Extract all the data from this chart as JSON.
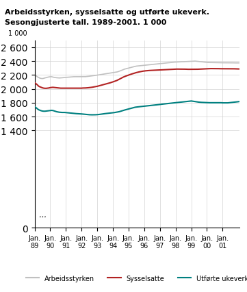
{
  "title": "Arbeidsstyrken, sysselsatte og utføre ukeverk.\nSesongjusterte tall. 1989-2001. 1 000",
  "title_line1": "Arbeidsstyrken, sysselsatte og utførte ukeverk.",
  "title_line2": "Sesongjusterte tall. 1989-2001. 1 000",
  "ylabel": "1 000",
  "ylim": [
    0,
    2700
  ],
  "yticks": [
    0,
    1400,
    1600,
    1800,
    2000,
    2200,
    2400,
    2600
  ],
  "xtick_labels": [
    "Jan.\n89",
    "Jan.\n90",
    "Jan.\n91",
    "Jan.\n92",
    "Jan.\n93",
    "Jan.\n94",
    "Jan.\n95",
    "Jan.\n96",
    "Jan.\n97",
    "Jan.\n98",
    "Jan.\n99",
    "Jan.\n00",
    "Jan.\n01"
  ],
  "legend_labels": [
    "Arbeidsstyrken",
    "Sysselsatte",
    "Utførte ukeverk"
  ],
  "colors": {
    "arbeidsstyrken": "#c0c0c0",
    "sysselsatte": "#b22222",
    "ukeverk": "#008080"
  },
  "arbeidsstyrken": [
    2200,
    2190,
    2175,
    2165,
    2155,
    2150,
    2148,
    2152,
    2158,
    2162,
    2168,
    2172,
    2175,
    2175,
    2170,
    2165,
    2162,
    2160,
    2158,
    2157,
    2158,
    2160,
    2162,
    2163,
    2165,
    2167,
    2168,
    2170,
    2172,
    2173,
    2175,
    2175,
    2176,
    2176,
    2175,
    2175,
    2175,
    2176,
    2176,
    2176,
    2178,
    2180,
    2182,
    2185,
    2188,
    2190,
    2192,
    2195,
    2198,
    2200,
    2203,
    2207,
    2210,
    2213,
    2216,
    2219,
    2222,
    2225,
    2228,
    2231,
    2234,
    2237,
    2240,
    2243,
    2248,
    2255,
    2262,
    2270,
    2278,
    2285,
    2290,
    2295,
    2300,
    2305,
    2310,
    2315,
    2320,
    2324,
    2328,
    2330,
    2332,
    2334,
    2336,
    2338,
    2340,
    2342,
    2344,
    2346,
    2348,
    2350,
    2352,
    2354,
    2356,
    2358,
    2360,
    2362,
    2364,
    2366,
    2368,
    2370,
    2372,
    2374,
    2376,
    2378,
    2380,
    2382,
    2384,
    2385,
    2386,
    2387,
    2388,
    2389,
    2390,
    2391,
    2392,
    2393,
    2394,
    2395,
    2396,
    2397,
    2398,
    2399,
    2400,
    2400,
    2398,
    2396,
    2394,
    2392,
    2390,
    2388,
    2386,
    2384,
    2382,
    2380,
    2380,
    2380,
    2379,
    2379,
    2378,
    2378,
    2378,
    2377,
    2377,
    2376,
    2376,
    2376,
    2376,
    2376,
    2375,
    2375,
    2375,
    2375,
    2375,
    2374,
    2374,
    2374,
    2374,
    2374
  ],
  "sysselsatte": [
    2090,
    2075,
    2060,
    2040,
    2030,
    2022,
    2015,
    2010,
    2008,
    2008,
    2010,
    2013,
    2018,
    2020,
    2022,
    2020,
    2018,
    2015,
    2013,
    2011,
    2010,
    2010,
    2010,
    2010,
    2010,
    2010,
    2010,
    2010,
    2010,
    2010,
    2010,
    2010,
    2010,
    2010,
    2010,
    2010,
    2010,
    2012,
    2012,
    2013,
    2014,
    2016,
    2018,
    2020,
    2023,
    2027,
    2030,
    2033,
    2037,
    2042,
    2047,
    2052,
    2057,
    2062,
    2067,
    2072,
    2077,
    2082,
    2088,
    2094,
    2100,
    2107,
    2114,
    2121,
    2130,
    2140,
    2150,
    2160,
    2170,
    2178,
    2185,
    2192,
    2198,
    2205,
    2212,
    2218,
    2225,
    2230,
    2235,
    2240,
    2244,
    2248,
    2252,
    2255,
    2258,
    2260,
    2262,
    2263,
    2265,
    2266,
    2268,
    2269,
    2270,
    2271,
    2272,
    2273,
    2274,
    2275,
    2276,
    2277,
    2278,
    2279,
    2280,
    2281,
    2282,
    2283,
    2284,
    2285,
    2285,
    2285,
    2285,
    2285,
    2285,
    2285,
    2284,
    2284,
    2283,
    2283,
    2282,
    2282,
    2282,
    2282,
    2281,
    2281,
    2282,
    2283,
    2284,
    2285,
    2286,
    2287,
    2288,
    2289,
    2290,
    2291,
    2292,
    2292,
    2292,
    2292,
    2292,
    2292,
    2291,
    2291,
    2290,
    2290,
    2290,
    2290,
    2290,
    2290,
    2290,
    2290,
    2289,
    2289,
    2289,
    2289,
    2288,
    2288,
    2287,
    2287
  ],
  "ukeverk": [
    1745,
    1730,
    1715,
    1700,
    1692,
    1685,
    1680,
    1678,
    1678,
    1680,
    1682,
    1685,
    1688,
    1690,
    1688,
    1682,
    1676,
    1670,
    1666,
    1663,
    1661,
    1660,
    1660,
    1660,
    1658,
    1656,
    1654,
    1652,
    1650,
    1648,
    1646,
    1644,
    1643,
    1642,
    1641,
    1640,
    1638,
    1636,
    1634,
    1632,
    1630,
    1628,
    1627,
    1626,
    1626,
    1626,
    1626,
    1627,
    1628,
    1630,
    1632,
    1635,
    1638,
    1640,
    1643,
    1645,
    1647,
    1648,
    1650,
    1652,
    1655,
    1658,
    1661,
    1664,
    1668,
    1672,
    1678,
    1684,
    1690,
    1695,
    1700,
    1706,
    1710,
    1715,
    1720,
    1726,
    1730,
    1735,
    1738,
    1740,
    1742,
    1744,
    1746,
    1748,
    1750,
    1752,
    1754,
    1756,
    1758,
    1760,
    1762,
    1764,
    1766,
    1768,
    1770,
    1772,
    1775,
    1778,
    1780,
    1782,
    1784,
    1786,
    1788,
    1790,
    1792,
    1794,
    1796,
    1798,
    1800,
    1802,
    1804,
    1806,
    1808,
    1810,
    1812,
    1814,
    1816,
    1818,
    1820,
    1822,
    1825,
    1822,
    1818,
    1815,
    1812,
    1810,
    1808,
    1806,
    1805,
    1804,
    1803,
    1802,
    1801,
    1800,
    1800,
    1800,
    1800,
    1800,
    1800,
    1800,
    1800,
    1800,
    1800,
    1800,
    1798,
    1798,
    1798,
    1798,
    1798,
    1800,
    1802,
    1804,
    1806,
    1808,
    1810,
    1812,
    1815,
    1818
  ]
}
